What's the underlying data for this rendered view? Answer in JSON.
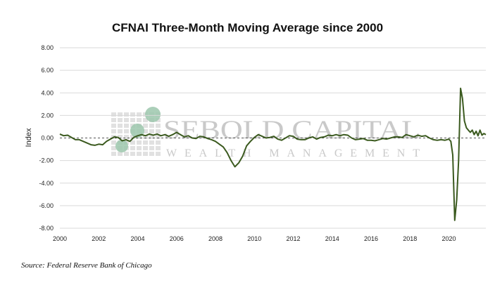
{
  "chart_data": {
    "type": "line",
    "title": "CFNAI Three-Month Moving Average since 2000",
    "ylabel": "Index",
    "xlabel": "",
    "xlim": [
      2000,
      2021.9
    ],
    "ylim": [
      -8,
      8
    ],
    "x_ticks": [
      "2000",
      "2002",
      "2004",
      "2006",
      "2008",
      "2010",
      "2012",
      "2014",
      "2016",
      "2018",
      "2020"
    ],
    "y_ticks": [
      "8.00",
      "6.00",
      "4.00",
      "2.00",
      "0.00",
      "-2.00",
      "-4.00",
      "-6.00",
      "-8.00"
    ],
    "grid": "horizontal",
    "reference_line": 0,
    "series": [
      {
        "color": "#3b5a1f",
        "points": [
          [
            2000.0,
            0.35
          ],
          [
            2000.2,
            0.2
          ],
          [
            2000.4,
            0.25
          ],
          [
            2000.6,
            0.05
          ],
          [
            2000.8,
            -0.15
          ],
          [
            2001.0,
            -0.15
          ],
          [
            2001.2,
            -0.3
          ],
          [
            2001.4,
            -0.45
          ],
          [
            2001.6,
            -0.6
          ],
          [
            2001.8,
            -0.65
          ],
          [
            2002.0,
            -0.55
          ],
          [
            2002.2,
            -0.6
          ],
          [
            2002.4,
            -0.3
          ],
          [
            2002.6,
            -0.1
          ],
          [
            2002.8,
            0.1
          ],
          [
            2003.0,
            0.05
          ],
          [
            2003.2,
            -0.25
          ],
          [
            2003.4,
            -0.15
          ],
          [
            2003.6,
            -0.3
          ],
          [
            2003.8,
            0.05
          ],
          [
            2004.0,
            0.2
          ],
          [
            2004.2,
            0.3
          ],
          [
            2004.4,
            0.2
          ],
          [
            2004.6,
            0.35
          ],
          [
            2004.8,
            0.25
          ],
          [
            2005.0,
            0.35
          ],
          [
            2005.2,
            0.2
          ],
          [
            2005.4,
            0.3
          ],
          [
            2005.6,
            0.15
          ],
          [
            2005.8,
            0.3
          ],
          [
            2006.0,
            0.5
          ],
          [
            2006.2,
            0.3
          ],
          [
            2006.4,
            0.1
          ],
          [
            2006.6,
            0.2
          ],
          [
            2006.8,
            0.0
          ],
          [
            2007.0,
            -0.05
          ],
          [
            2007.2,
            0.15
          ],
          [
            2007.4,
            0.1
          ],
          [
            2007.6,
            -0.05
          ],
          [
            2007.8,
            -0.15
          ],
          [
            2008.0,
            -0.3
          ],
          [
            2008.2,
            -0.55
          ],
          [
            2008.4,
            -0.8
          ],
          [
            2008.6,
            -1.3
          ],
          [
            2008.8,
            -2.0
          ],
          [
            2009.0,
            -2.55
          ],
          [
            2009.2,
            -2.2
          ],
          [
            2009.4,
            -1.6
          ],
          [
            2009.6,
            -0.7
          ],
          [
            2009.8,
            -0.3
          ],
          [
            2010.0,
            0.05
          ],
          [
            2010.2,
            0.3
          ],
          [
            2010.4,
            0.15
          ],
          [
            2010.6,
            0.0
          ],
          [
            2010.8,
            0.05
          ],
          [
            2011.0,
            0.15
          ],
          [
            2011.2,
            -0.1
          ],
          [
            2011.4,
            -0.2
          ],
          [
            2011.6,
            0.0
          ],
          [
            2011.8,
            0.2
          ],
          [
            2012.0,
            0.15
          ],
          [
            2012.2,
            -0.1
          ],
          [
            2012.4,
            -0.15
          ],
          [
            2012.6,
            -0.15
          ],
          [
            2012.8,
            0.0
          ],
          [
            2013.0,
            0.1
          ],
          [
            2013.2,
            -0.1
          ],
          [
            2013.4,
            0.05
          ],
          [
            2013.6,
            0.1
          ],
          [
            2013.8,
            0.25
          ],
          [
            2014.0,
            0.2
          ],
          [
            2014.2,
            0.3
          ],
          [
            2014.4,
            0.2
          ],
          [
            2014.6,
            0.3
          ],
          [
            2014.8,
            0.25
          ],
          [
            2015.0,
            0.0
          ],
          [
            2015.2,
            -0.15
          ],
          [
            2015.4,
            -0.1
          ],
          [
            2015.6,
            -0.05
          ],
          [
            2015.8,
            -0.2
          ],
          [
            2016.0,
            -0.2
          ],
          [
            2016.2,
            -0.25
          ],
          [
            2016.4,
            -0.15
          ],
          [
            2016.6,
            -0.05
          ],
          [
            2016.8,
            -0.1
          ],
          [
            2017.0,
            0.0
          ],
          [
            2017.2,
            0.1
          ],
          [
            2017.4,
            0.1
          ],
          [
            2017.6,
            0.05
          ],
          [
            2017.8,
            0.3
          ],
          [
            2018.0,
            0.2
          ],
          [
            2018.2,
            0.1
          ],
          [
            2018.4,
            0.25
          ],
          [
            2018.6,
            0.15
          ],
          [
            2018.8,
            0.2
          ],
          [
            2019.0,
            0.0
          ],
          [
            2019.2,
            -0.15
          ],
          [
            2019.4,
            -0.2
          ],
          [
            2019.6,
            -0.15
          ],
          [
            2019.8,
            -0.2
          ],
          [
            2020.0,
            -0.1
          ],
          [
            2020.1,
            -0.3
          ],
          [
            2020.2,
            -1.5
          ],
          [
            2020.3,
            -7.3
          ],
          [
            2020.4,
            -5.5
          ],
          [
            2020.5,
            -2.0
          ],
          [
            2020.6,
            4.4
          ],
          [
            2020.7,
            3.5
          ],
          [
            2020.8,
            1.5
          ],
          [
            2020.9,
            0.9
          ],
          [
            2021.0,
            0.7
          ],
          [
            2021.1,
            0.5
          ],
          [
            2021.2,
            0.7
          ],
          [
            2021.3,
            0.3
          ],
          [
            2021.4,
            0.6
          ],
          [
            2021.5,
            0.2
          ],
          [
            2021.6,
            0.7
          ],
          [
            2021.7,
            0.25
          ],
          [
            2021.8,
            0.4
          ],
          [
            2021.9,
            0.3
          ]
        ]
      }
    ]
  },
  "watermark": {
    "line1": "SEBOLD CAPITAL",
    "line2": "WEALTH MANAGEMENT"
  },
  "source": "Source: Federal Reserve Bank of Chicago",
  "colors": {
    "line": "#3b5a1f",
    "grid": "#d9d9d9",
    "watermark": "#c9c9c9",
    "watermark_circles": "#9cc7ad"
  }
}
